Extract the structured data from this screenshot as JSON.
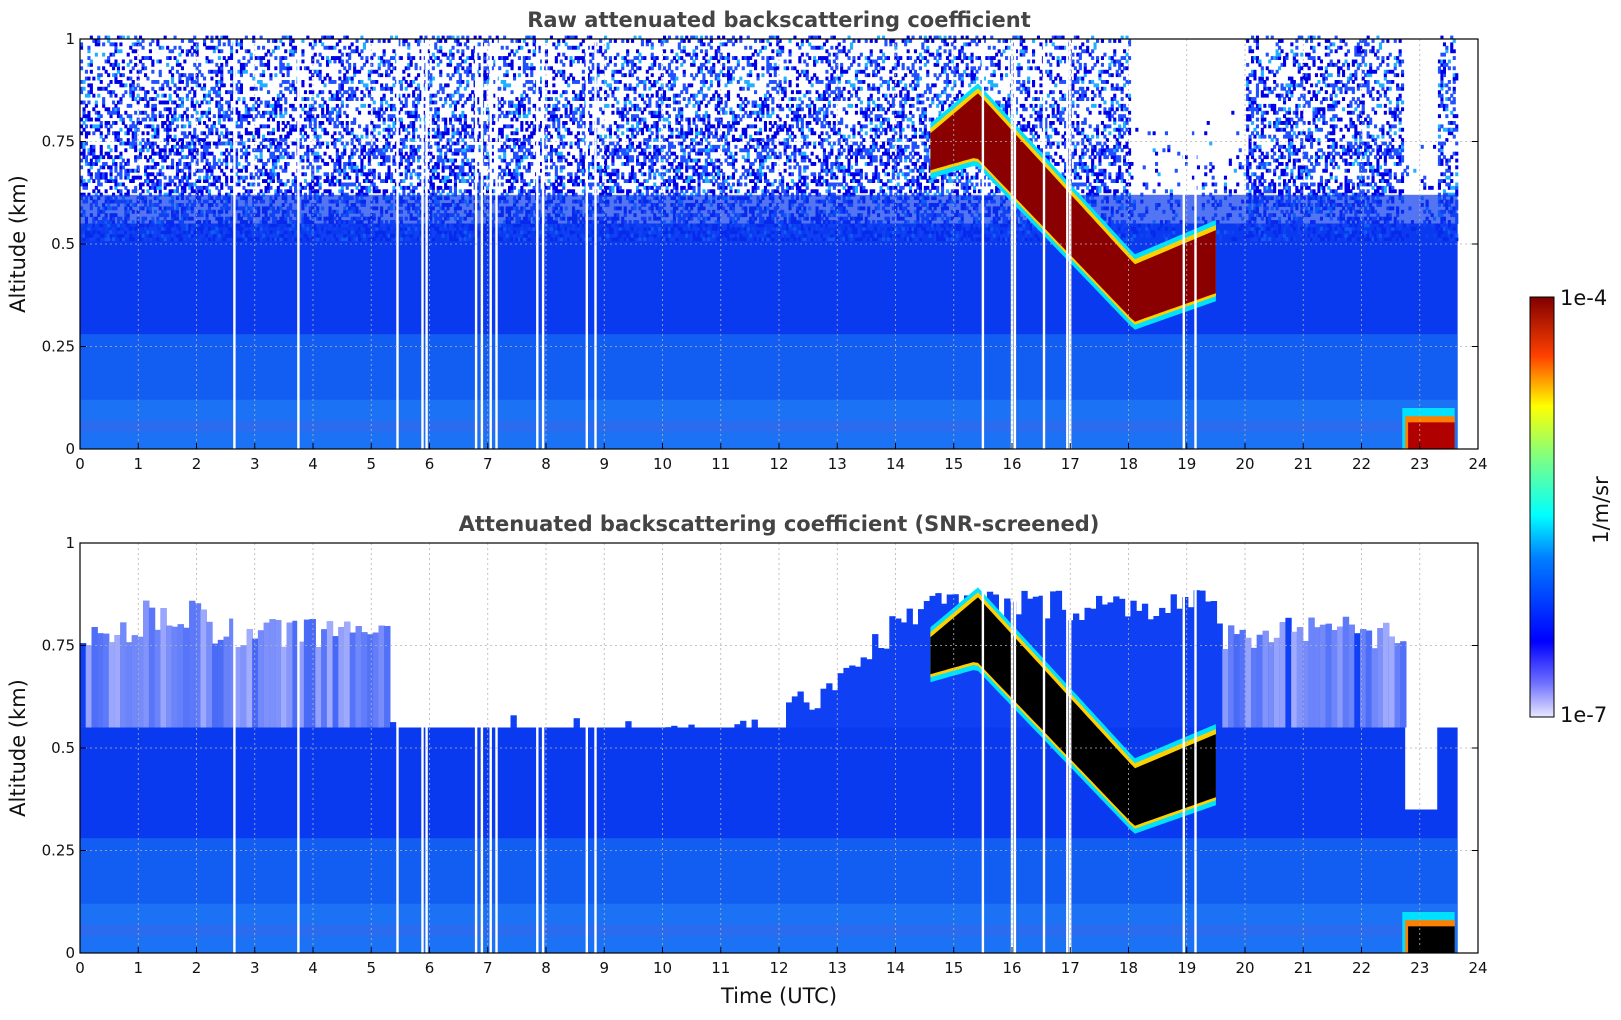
{
  "chart_data": [
    {
      "type": "heatmap",
      "title": "Raw attenuated backscattering coefficient",
      "xlabel": "",
      "ylabel": "Altitude (km)",
      "xlim": [
        0,
        24
      ],
      "ylim": [
        0,
        1
      ],
      "xticks": [
        "0",
        "1",
        "2",
        "3",
        "4",
        "5",
        "6",
        "7",
        "8",
        "9",
        "10",
        "11",
        "12",
        "13",
        "14",
        "15",
        "16",
        "17",
        "18",
        "19",
        "20",
        "21",
        "22",
        "23",
        "24"
      ],
      "yticks": [
        "0",
        "0.25",
        "0.5",
        "0.75",
        "1"
      ],
      "grid": true,
      "noisy_upper_signal": true,
      "features": [
        {
          "name": "cloud layer",
          "time_utc": [
            14.6,
            19.5
          ],
          "altitude_km": [
            0.3,
            0.87
          ],
          "level": "1e-4"
        },
        {
          "name": "surface fog",
          "time_utc": [
            22.7,
            23.6
          ],
          "altitude_km": [
            0,
            0.08
          ],
          "level": "1e-4"
        }
      ],
      "missing_data_times_utc": [
        2.65,
        3.75,
        5.45,
        5.88,
        5.95,
        6.8,
        6.9,
        7.05,
        7.15,
        7.85,
        7.95,
        8.7,
        8.85,
        15.5,
        16.0,
        16.05,
        16.55,
        16.95,
        17.0,
        18.95,
        19.15
      ]
    },
    {
      "type": "heatmap",
      "title": "Attenuated backscattering coefficient (SNR-screened)",
      "xlabel": "Time (UTC)",
      "ylabel": "Altitude (km)",
      "xlim": [
        0,
        24
      ],
      "ylim": [
        0,
        1
      ],
      "xticks": [
        "0",
        "1",
        "2",
        "3",
        "4",
        "5",
        "6",
        "7",
        "8",
        "9",
        "10",
        "11",
        "12",
        "13",
        "14",
        "15",
        "16",
        "17",
        "18",
        "19",
        "20",
        "21",
        "22",
        "23",
        "24"
      ],
      "yticks": [
        "0",
        "0.25",
        "0.5",
        "0.75",
        "1"
      ],
      "grid": true,
      "noisy_upper_signal": false,
      "features": [
        {
          "name": "cloud layer",
          "time_utc": [
            14.6,
            19.5
          ],
          "altitude_km": [
            0.3,
            0.87
          ],
          "level": "above 1e-4"
        },
        {
          "name": "surface fog",
          "time_utc": [
            22.7,
            23.6
          ],
          "altitude_km": [
            0,
            0.08
          ],
          "level": "above 1e-4"
        }
      ],
      "missing_data_times_utc": [
        2.65,
        3.75,
        5.45,
        5.88,
        5.95,
        6.8,
        6.9,
        7.05,
        7.15,
        7.85,
        7.95,
        8.7,
        8.85,
        15.5,
        16.0,
        16.05,
        16.55,
        16.95,
        17.0,
        18.95,
        19.15
      ]
    }
  ],
  "colorbar": {
    "label": "1/m/sr",
    "min_label": "1e-7",
    "max_label": "1e-4",
    "scale": "log",
    "colormap": "jet"
  },
  "colors": {
    "title": "#444444",
    "grid": "#b4b4b4",
    "above_max": "#000000"
  }
}
